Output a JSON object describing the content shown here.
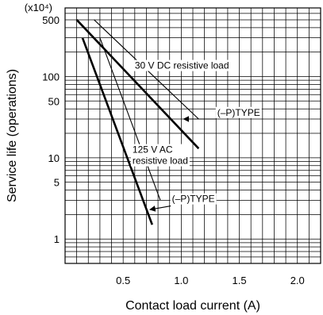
{
  "chart_data": {
    "type": "line",
    "xlabel": "Contact load current (A)",
    "ylabel": "Service life (operations)",
    "y_unit": "(x10⁴)",
    "xlim": [
      0,
      2.2
    ],
    "ylim": [
      0.5,
      700
    ],
    "y_scale": "log",
    "grid": true,
    "x_ticks": [
      {
        "value": 0.5,
        "label": "0.5"
      },
      {
        "value": 1.0,
        "label": "1.0"
      },
      {
        "value": 1.5,
        "label": "1.5"
      },
      {
        "value": 2.0,
        "label": "2.0"
      }
    ],
    "y_ticks": [
      {
        "value": 500,
        "label": "500"
      },
      {
        "value": 100,
        "label": "100"
      },
      {
        "value": 50,
        "label": "50"
      },
      {
        "value": 10,
        "label": "10"
      },
      {
        "value": 5,
        "label": "5"
      },
      {
        "value": 1,
        "label": "1"
      }
    ],
    "series": [
      {
        "key": "dc-standard",
        "x": [
          0.1,
          1.15
        ],
        "y": [
          500,
          13
        ],
        "weight": "thick"
      },
      {
        "key": "dc-p-type",
        "x": [
          0.25,
          1.15
        ],
        "y": [
          500,
          30
        ],
        "weight": "thin"
      },
      {
        "key": "ac-standard",
        "x": [
          0.15,
          0.75
        ],
        "y": [
          300,
          1.5
        ],
        "weight": "thick"
      },
      {
        "key": "ac-p-type",
        "x": [
          0.3,
          0.82
        ],
        "y": [
          300,
          3
        ],
        "weight": "thin"
      }
    ],
    "annotations": [
      {
        "key": "dc-load",
        "lines": [
          "30 V DC resistive load"
        ],
        "x": 0.6,
        "y": 125,
        "anchor": "start",
        "boxed": true
      },
      {
        "key": "dc-ptype",
        "lines": [
          "(–P)TYPE"
        ],
        "x": 1.31,
        "y": 33,
        "anchor": "start",
        "boxed": true,
        "arrow": {
          "from": [
            1.3,
            30
          ],
          "to": [
            1.02,
            30
          ]
        }
      },
      {
        "key": "ac-load",
        "lines": [
          "125 V AC",
          "resistive load"
        ],
        "x": 0.58,
        "y": 11.5,
        "anchor": "start",
        "boxed": true
      },
      {
        "key": "ac-ptype",
        "lines": [
          "(–P)TYPE"
        ],
        "x": 0.92,
        "y": 2.85,
        "anchor": "start",
        "boxed": true,
        "arrow": {
          "from": [
            0.91,
            2.55
          ],
          "to": [
            0.73,
            2.3
          ]
        }
      }
    ]
  }
}
